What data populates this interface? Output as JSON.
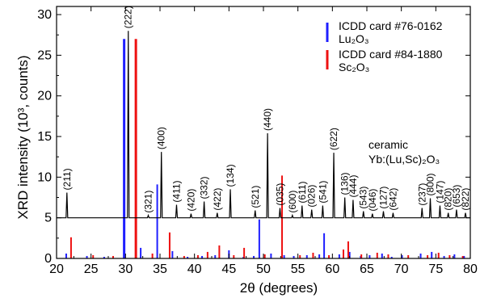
{
  "chart_data": {
    "type": "line",
    "xlabel": "2θ (degrees)",
    "ylabel": "XRD intensity (10³, counts)",
    "xlim": [
      20,
      80
    ],
    "ylim": [
      0,
      31
    ],
    "xticks": [
      20,
      25,
      30,
      35,
      40,
      45,
      50,
      55,
      60,
      65,
      70,
      75,
      80
    ],
    "yticks": [
      0,
      5,
      10,
      15,
      20,
      25,
      30
    ],
    "legend": [
      {
        "line1": "ICDD card #76-0162",
        "line2": "Lu₂O₃",
        "color": "#1f1fff"
      },
      {
        "line1": "ICDD card #84-1880",
        "line2": "Sc₂O₃",
        "color": "#ee1111"
      }
    ],
    "annotation": {
      "line1": "ceramic",
      "line2": "Yb:(Lu,Sc)₂O₃"
    },
    "baseline": 5.0,
    "pattern_color": "#000000",
    "peaks": [
      {
        "x": 21.5,
        "y": 8.1,
        "label": "(211)"
      },
      {
        "x": 30.4,
        "y": 28.0,
        "label": "(222)"
      },
      {
        "x": 33.3,
        "y": 5.3,
        "label": "(321)"
      },
      {
        "x": 35.2,
        "y": 13.1,
        "label": "(400)"
      },
      {
        "x": 37.4,
        "y": 6.6,
        "label": "(411)"
      },
      {
        "x": 39.5,
        "y": 5.5,
        "label": "(420)"
      },
      {
        "x": 41.4,
        "y": 7.0,
        "label": "(332)"
      },
      {
        "x": 43.3,
        "y": 5.6,
        "label": "(422)"
      },
      {
        "x": 45.2,
        "y": 8.5,
        "label": "(134)"
      },
      {
        "x": 48.8,
        "y": 5.9,
        "label": "(521)"
      },
      {
        "x": 50.6,
        "y": 15.4,
        "label": "(440)"
      },
      {
        "x": 52.4,
        "y": 6.2,
        "label": "(035)"
      },
      {
        "x": 54.2,
        "y": 5.3,
        "label": "(600)"
      },
      {
        "x": 55.6,
        "y": 6.5,
        "label": "(611)"
      },
      {
        "x": 57.0,
        "y": 6.0,
        "label": "(026)"
      },
      {
        "x": 58.6,
        "y": 6.5,
        "label": "(541)"
      },
      {
        "x": 60.2,
        "y": 13.0,
        "label": "(622)"
      },
      {
        "x": 61.8,
        "y": 7.5,
        "label": "(136)"
      },
      {
        "x": 63.0,
        "y": 7.2,
        "label": "(444)"
      },
      {
        "x": 64.5,
        "y": 5.8,
        "label": "(543)"
      },
      {
        "x": 65.8,
        "y": 5.5,
        "label": "(046)"
      },
      {
        "x": 67.4,
        "y": 5.8,
        "label": "(127)"
      },
      {
        "x": 68.8,
        "y": 5.6,
        "label": "(642)"
      },
      {
        "x": 73.0,
        "y": 6.2,
        "label": "(237)"
      },
      {
        "x": 74.2,
        "y": 7.4,
        "label": "(800)"
      },
      {
        "x": 75.6,
        "y": 6.5,
        "label": "(147)"
      },
      {
        "x": 76.8,
        "y": 5.6,
        "label": "(820)"
      },
      {
        "x": 78.0,
        "y": 6.0,
        "label": "(653)"
      },
      {
        "x": 79.3,
        "y": 5.6,
        "label": "(822)"
      }
    ],
    "series": [
      {
        "name": "Lu₂O₃",
        "type": "stick",
        "color": "#1f1fff",
        "x": [
          21.4,
          24.4,
          26.9,
          29.8,
          32.2,
          34.6,
          36.8,
          39.0,
          41.1,
          43.0,
          45.0,
          47.1,
          48.6,
          49.4,
          51.1,
          53.0,
          54.4,
          56.3,
          58.1,
          58.8,
          61.0,
          62.5,
          64.1,
          65.4,
          67.2,
          68.6,
          70.1,
          72.8,
          74.4,
          76.2,
          77.7,
          79.1
        ],
        "y": [
          0.6,
          0.3,
          0.2,
          27.0,
          1.3,
          9.1,
          0.9,
          0.2,
          0.3,
          0.4,
          1.0,
          0.2,
          0.3,
          4.8,
          0.6,
          0.4,
          0.3,
          0.4,
          0.5,
          3.1,
          0.5,
          0.8,
          0.3,
          0.4,
          0.6,
          0.2,
          0.4,
          0.6,
          0.8,
          0.3,
          0.5,
          0.3
        ]
      },
      {
        "name": "Sc₂O₃",
        "type": "stick",
        "color": "#ee1111",
        "x": [
          22.1,
          25.3,
          28.2,
          31.5,
          33.9,
          36.4,
          38.5,
          40.5,
          41.9,
          43.6,
          45.7,
          47.2,
          50.2,
          52.7,
          55.3,
          57.2,
          59.5,
          61.6,
          62.3,
          64.2,
          66.5,
          68.1,
          71.0,
          73.8,
          75.4,
          77.0,
          78.9
        ],
        "y": [
          2.6,
          0.4,
          0.3,
          27.0,
          0.6,
          3.2,
          0.3,
          0.4,
          0.8,
          1.6,
          0.4,
          1.3,
          0.5,
          10.2,
          0.4,
          0.7,
          0.4,
          1.1,
          2.1,
          0.5,
          0.7,
          0.5,
          0.4,
          0.4,
          0.7,
          0.4,
          0.3
        ]
      }
    ]
  }
}
